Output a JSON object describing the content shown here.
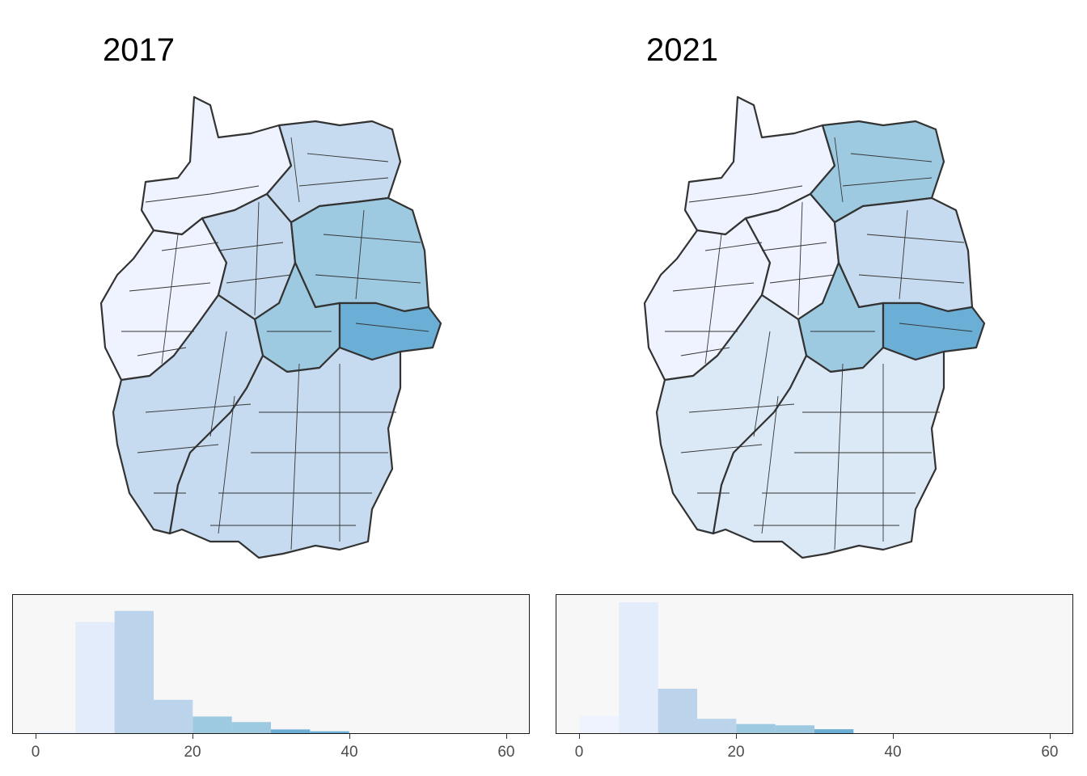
{
  "panels": [
    {
      "title": "2017",
      "colors": {
        "north": "#eff3ff",
        "west": "#eff3ff",
        "center": "#c6dbef",
        "south": "#c6dbef",
        "ne": "#c6dbef",
        "east": "#9ecae1",
        "thuringia": "#9ecae1",
        "saxony": "#6baed6"
      }
    },
    {
      "title": "2021",
      "colors": {
        "north": "#eff3ff",
        "west": "#eff3ff",
        "center": "#eff3ff",
        "south": "#dbe9f6",
        "ne": "#9ecae1",
        "east": "#c6dbef",
        "thuringia": "#9ecae1",
        "saxony": "#6baed6"
      }
    }
  ],
  "chart_data": [
    {
      "type": "bar",
      "bins": [
        [
          0,
          5
        ],
        [
          5,
          10
        ],
        [
          10,
          15
        ],
        [
          15,
          20
        ],
        [
          20,
          25
        ],
        [
          25,
          30
        ],
        [
          30,
          35
        ],
        [
          35,
          40
        ]
      ],
      "values": [
        1,
        60,
        66,
        18,
        9,
        6,
        2,
        1
      ],
      "colors": [
        "#eff3ff",
        "#e3ecfa",
        "#bcd3ec",
        "#bcd3ec",
        "#9ecae1",
        "#9ecae1",
        "#6baed6",
        "#6baed6"
      ],
      "xlim": [
        -3,
        63
      ],
      "ylim": [
        0,
        72
      ],
      "xticks": [
        0,
        20,
        40,
        60
      ]
    },
    {
      "type": "bar",
      "bins": [
        [
          0,
          5
        ],
        [
          5,
          10
        ],
        [
          10,
          15
        ],
        [
          15,
          20
        ],
        [
          20,
          25
        ],
        [
          25,
          30
        ],
        [
          30,
          35
        ]
      ],
      "values": [
        13,
        100,
        34,
        11,
        7,
        6,
        3
      ],
      "colors": [
        "#eff3ff",
        "#e3ecfa",
        "#bcd3ec",
        "#bcd3ec",
        "#9ecae1",
        "#9ecae1",
        "#6baed6"
      ],
      "xlim": [
        -3,
        63
      ],
      "ylim": [
        0,
        102
      ],
      "xticks": [
        0,
        20,
        40,
        60
      ]
    }
  ]
}
